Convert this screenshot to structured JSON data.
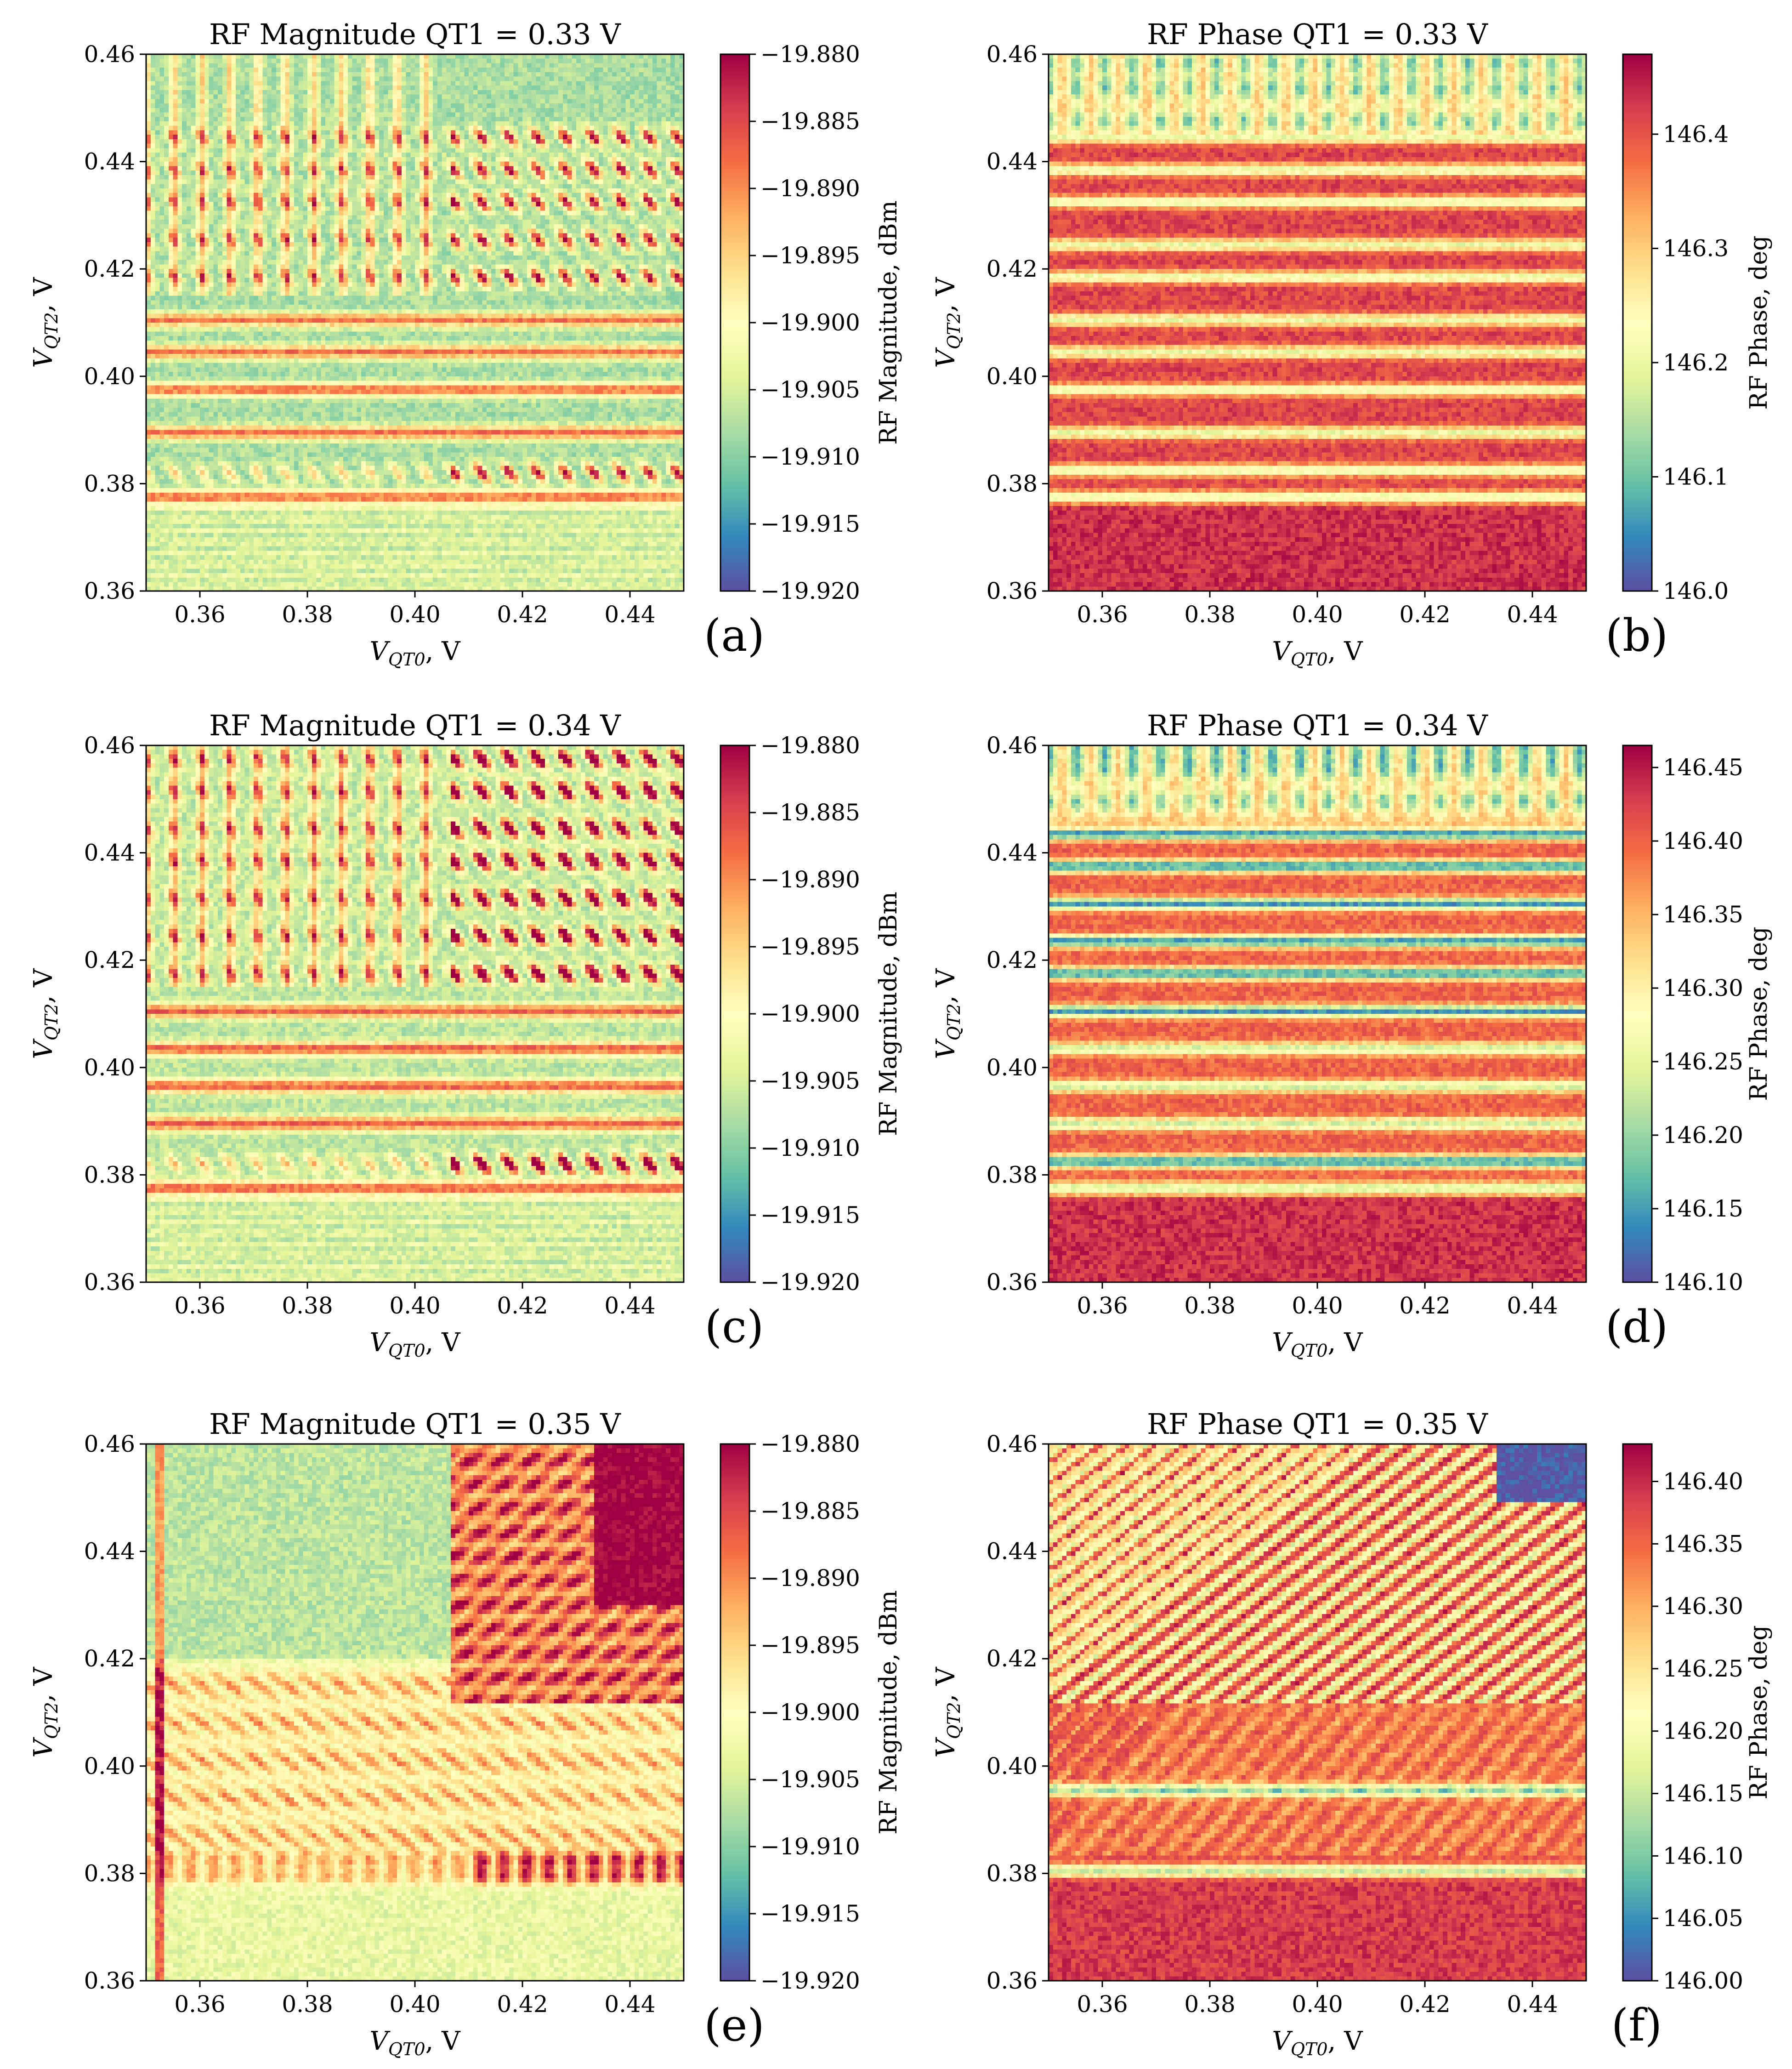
{
  "colors": {
    "spectral": [
      "#5e4fa2",
      "#3288bd",
      "#66c2a5",
      "#abdda4",
      "#e6f598",
      "#ffffbf",
      "#fee08b",
      "#fdae61",
      "#f46d43",
      "#d53e4f",
      "#9e0142"
    ]
  },
  "chart_data": [
    {
      "id": "a",
      "type": "heatmap",
      "panel_label": "(a)",
      "title": "RF Magnitude QT1 = 0.33 V",
      "xlabel_main": "V",
      "xlabel_sub": "QT0",
      "xlabel_unit": ", V",
      "ylabel_main": "V",
      "ylabel_sub": "QT2",
      "ylabel_unit": ", V",
      "xlim": [
        0.35,
        0.45
      ],
      "ylim": [
        0.36,
        0.46
      ],
      "xticks": [
        "0.36",
        "0.38",
        "0.40",
        "0.42",
        "0.44"
      ],
      "yticks": [
        "0.36",
        "0.38",
        "0.40",
        "0.42",
        "0.44",
        "0.46"
      ],
      "colorbar": {
        "label": "RF Magnitude, dBm",
        "min": -19.92,
        "max": -19.88,
        "ticks": [
          "−19.880",
          "−19.885",
          "−19.890",
          "−19.895",
          "−19.900",
          "−19.905",
          "−19.910",
          "−19.915",
          "−19.920"
        ]
      },
      "pattern": "mag033",
      "base_level": 0.3,
      "stripes_y": [
        0.3775,
        0.3895,
        0.3975,
        0.4045,
        0.4105
      ],
      "blob_rows_y": [
        0.382,
        0.4185,
        0.4255,
        0.4325,
        0.4385,
        0.4445
      ],
      "blob_pitch_x": 0.0052
    },
    {
      "id": "b",
      "type": "heatmap",
      "panel_label": "(b)",
      "title": "RF Phase QT1 = 0.33 V",
      "xlabel_main": "V",
      "xlabel_sub": "QT0",
      "xlabel_unit": ", V",
      "ylabel_main": "V",
      "ylabel_sub": "QT2",
      "ylabel_unit": ", V",
      "xlim": [
        0.35,
        0.45
      ],
      "ylim": [
        0.36,
        0.46
      ],
      "xticks": [
        "0.36",
        "0.38",
        "0.40",
        "0.42",
        "0.44"
      ],
      "yticks": [
        "0.36",
        "0.38",
        "0.40",
        "0.42",
        "0.44",
        "0.46"
      ],
      "colorbar": {
        "label": "RF Phase, deg",
        "min": 146.0,
        "max": 146.47,
        "ticks": [
          "146.4",
          "146.3",
          "146.2",
          "146.1",
          "146.0"
        ]
      },
      "pattern": "phase033",
      "base_level": 0.88,
      "stripes_y": [
        0.3775,
        0.3825,
        0.3895,
        0.3975,
        0.4045,
        0.4105,
        0.4185,
        0.4245,
        0.4325,
        0.4385,
        0.4445
      ],
      "blob_rows_y": [
        0.4475,
        0.4535,
        0.4585
      ],
      "blob_pitch_x": 0.0052
    },
    {
      "id": "c",
      "type": "heatmap",
      "panel_label": "(c)",
      "title": "RF Magnitude QT1 = 0.34 V",
      "xlabel_main": "V",
      "xlabel_sub": "QT0",
      "xlabel_unit": ", V",
      "ylabel_main": "V",
      "ylabel_sub": "QT2",
      "ylabel_unit": ", V",
      "xlim": [
        0.35,
        0.45
      ],
      "ylim": [
        0.36,
        0.46
      ],
      "xticks": [
        "0.36",
        "0.38",
        "0.40",
        "0.42",
        "0.44"
      ],
      "yticks": [
        "0.36",
        "0.38",
        "0.40",
        "0.42",
        "0.44",
        "0.46"
      ],
      "colorbar": {
        "label": "RF Magnitude, dBm",
        "min": -19.92,
        "max": -19.88,
        "ticks": [
          "−19.880",
          "−19.885",
          "−19.890",
          "−19.895",
          "−19.900",
          "−19.905",
          "−19.910",
          "−19.915",
          "−19.920"
        ]
      },
      "pattern": "mag034",
      "base_level": 0.33,
      "stripes_y": [
        0.3775,
        0.3895,
        0.3965,
        0.4035,
        0.4105
      ],
      "blob_rows_y": [
        0.382,
        0.4175,
        0.4245,
        0.4315,
        0.4385,
        0.4445,
        0.4515,
        0.4575
      ],
      "blob_pitch_x": 0.0052
    },
    {
      "id": "d",
      "type": "heatmap",
      "panel_label": "(d)",
      "title": "RF Phase QT1 = 0.34 V",
      "xlabel_main": "V",
      "xlabel_sub": "QT0",
      "xlabel_unit": ", V",
      "ylabel_main": "V",
      "ylabel_sub": "QT2",
      "ylabel_unit": ", V",
      "xlim": [
        0.35,
        0.45
      ],
      "ylim": [
        0.36,
        0.46
      ],
      "xticks": [
        "0.36",
        "0.38",
        "0.40",
        "0.42",
        "0.44"
      ],
      "yticks": [
        "0.36",
        "0.38",
        "0.40",
        "0.42",
        "0.44",
        "0.46"
      ],
      "colorbar": {
        "label": "RF Phase, deg",
        "min": 146.1,
        "max": 146.465,
        "ticks": [
          "146.45",
          "146.40",
          "146.35",
          "146.30",
          "146.25",
          "146.20",
          "146.15",
          "146.10"
        ]
      },
      "pattern": "phase034",
      "base_level": 0.82,
      "stripes_y": [
        0.3775,
        0.3825,
        0.3895,
        0.3965,
        0.4035,
        0.4105,
        0.4175,
        0.4235,
        0.4305,
        0.4375,
        0.4435
      ],
      "blob_rows_y": [
        0.4495,
        0.4555,
        0.4595
      ],
      "blob_pitch_x": 0.0052
    },
    {
      "id": "e",
      "type": "heatmap",
      "panel_label": "(e)",
      "title": "RF Magnitude QT1 = 0.35 V",
      "xlabel_main": "V",
      "xlabel_sub": "QT0",
      "xlabel_unit": ", V",
      "ylabel_main": "V",
      "ylabel_sub": "QT2",
      "ylabel_unit": ", V",
      "xlim": [
        0.35,
        0.45
      ],
      "ylim": [
        0.36,
        0.46
      ],
      "xticks": [
        "0.36",
        "0.38",
        "0.40",
        "0.42",
        "0.44"
      ],
      "yticks": [
        "0.36",
        "0.38",
        "0.40",
        "0.42",
        "0.44",
        "0.46"
      ],
      "colorbar": {
        "label": "RF Magnitude, dBm",
        "min": -19.92,
        "max": -19.88,
        "ticks": [
          "−19.880",
          "−19.885",
          "−19.890",
          "−19.895",
          "−19.900",
          "−19.905",
          "−19.910",
          "−19.915",
          "−19.920"
        ]
      },
      "pattern": "mag035",
      "base_level": 0.38,
      "stripes_y": [
        0.3795,
        0.3825
      ],
      "blob_rows_y": [
        0.387,
        0.394,
        0.401,
        0.408,
        0.415
      ],
      "blob_pitch_x": 0.0052
    },
    {
      "id": "f",
      "type": "heatmap",
      "panel_label": "(f)",
      "title": "RF Phase QT1 = 0.35 V",
      "xlabel_main": "V",
      "xlabel_sub": "QT0",
      "xlabel_unit": ", V",
      "ylabel_main": "V",
      "ylabel_sub": "QT2",
      "ylabel_unit": ", V",
      "xlim": [
        0.35,
        0.45
      ],
      "ylim": [
        0.36,
        0.46
      ],
      "xticks": [
        "0.36",
        "0.38",
        "0.40",
        "0.42",
        "0.44"
      ],
      "yticks": [
        "0.36",
        "0.38",
        "0.40",
        "0.42",
        "0.44",
        "0.46"
      ],
      "colorbar": {
        "label": "RF Phase, deg",
        "min": 146.0,
        "max": 146.43,
        "ticks": [
          "146.40",
          "146.35",
          "146.30",
          "146.25",
          "146.20",
          "146.15",
          "146.10",
          "146.05",
          "146.00"
        ]
      },
      "pattern": "phase035",
      "base_level": 0.85,
      "stripes_y": [
        0.3805,
        0.3955
      ],
      "blob_rows_y": [
        0.387,
        0.394,
        0.401,
        0.408,
        0.415,
        0.422,
        0.429,
        0.436,
        0.443,
        0.45,
        0.457
      ],
      "blob_pitch_x": 0.0052
    }
  ]
}
